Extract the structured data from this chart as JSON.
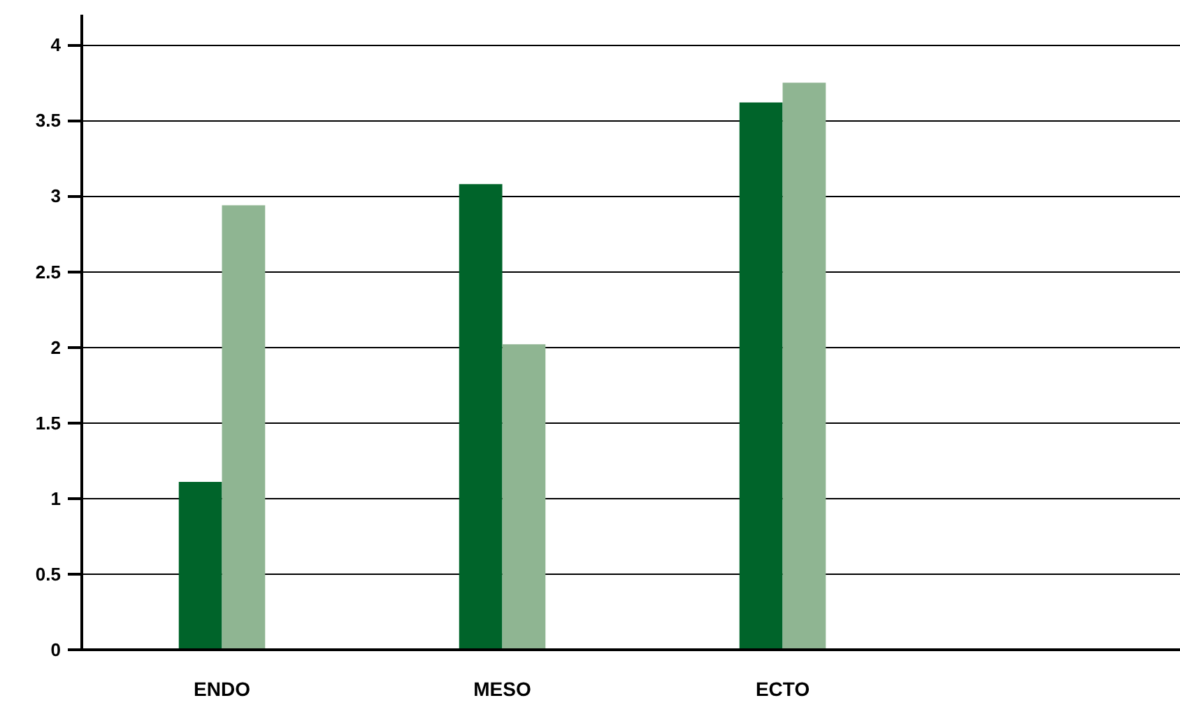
{
  "chart_data": {
    "type": "bar",
    "categories": [
      "ENDO",
      "MESO",
      "ECTO",
      null
    ],
    "series": [
      {
        "color": "#00642a",
        "values": [
          1.11,
          3.08,
          3.62,
          null
        ]
      },
      {
        "color": "#8fb592",
        "values": [
          2.94,
          2.02,
          3.75,
          null
        ]
      }
    ],
    "ylim": [
      0,
      4.2
    ],
    "yticks": [
      0,
      0.5,
      1,
      1.5,
      2,
      2.5,
      3,
      3.5,
      4
    ],
    "grid": "y"
  }
}
